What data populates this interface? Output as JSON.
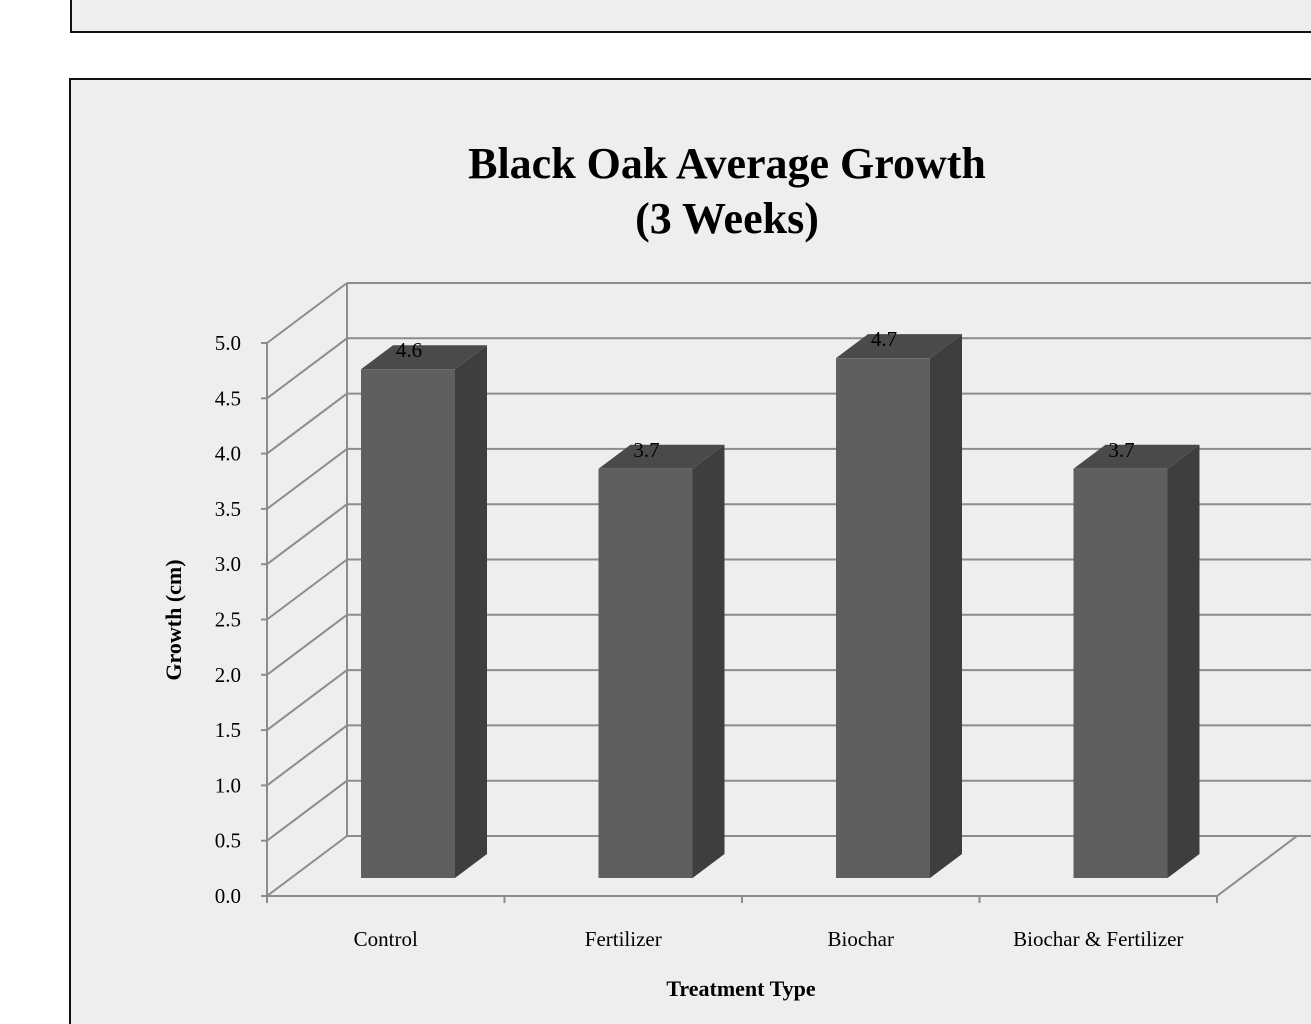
{
  "chart_data": {
    "type": "bar",
    "title": "Black Oak Average Growth",
    "subtitle": "(3 Weeks)",
    "xlabel": "Treatment Type",
    "ylabel": "Growth (cm)",
    "categories": [
      "Control",
      "Fertilizer",
      "Biochar",
      "Biochar & Fertilizer"
    ],
    "values": [
      4.6,
      3.7,
      4.7,
      3.7
    ],
    "data_labels": [
      "4.6",
      "3.7",
      "4.7",
      "3.7"
    ],
    "ylim": [
      0,
      5
    ],
    "yticks": [
      "0.0",
      "0.5",
      "1.0",
      "1.5",
      "2.0",
      "2.5",
      "3.0",
      "3.5",
      "4.0",
      "4.5",
      "5.0"
    ],
    "grid": true,
    "legend": "none",
    "style": "3d-column",
    "colors": {
      "bar_front": "#5f5f5f",
      "bar_side": "#3e3e3e",
      "bar_top": "#4a4a4a",
      "grid": "#8c8c8c"
    }
  }
}
